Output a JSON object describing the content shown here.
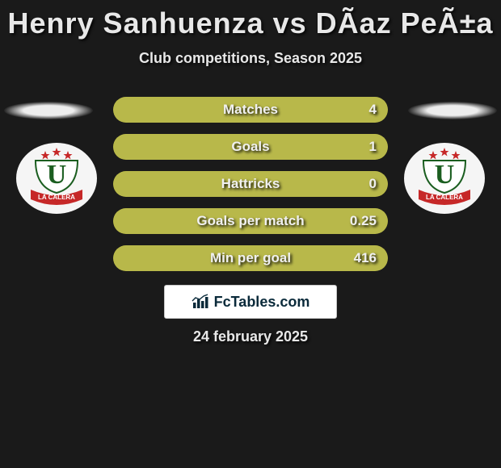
{
  "title": "Henry Sanhuenza vs DÃ­az PeÃ±a",
  "subtitle": "Club competitions, Season 2025",
  "date": "24 february 2025",
  "fctables_label": "FcTables.com",
  "colors": {
    "background": "#1a1a1a",
    "bar_track": "#8a8a2a",
    "bar_fill": "#b8b84a",
    "text": "#e8e8e8",
    "badge_bg": "#f5f5f5",
    "fctables_bg": "#ffffff",
    "fctables_text": "#0a2a3a"
  },
  "stats": [
    {
      "label": "Matches",
      "value": "4",
      "fill_pct": 100
    },
    {
      "label": "Goals",
      "value": "1",
      "fill_pct": 100
    },
    {
      "label": "Hattricks",
      "value": "0",
      "fill_pct": 100
    },
    {
      "label": "Goals per match",
      "value": "0.25",
      "fill_pct": 100
    },
    {
      "label": "Min per goal",
      "value": "416",
      "fill_pct": 100
    }
  ],
  "team_badge": {
    "text_top": "U",
    "text_banner": "LA CALERA",
    "star_color": "#c62828",
    "u_color": "#1b5e20",
    "banner_color": "#c62828",
    "banner_text_color": "#ffffff"
  }
}
